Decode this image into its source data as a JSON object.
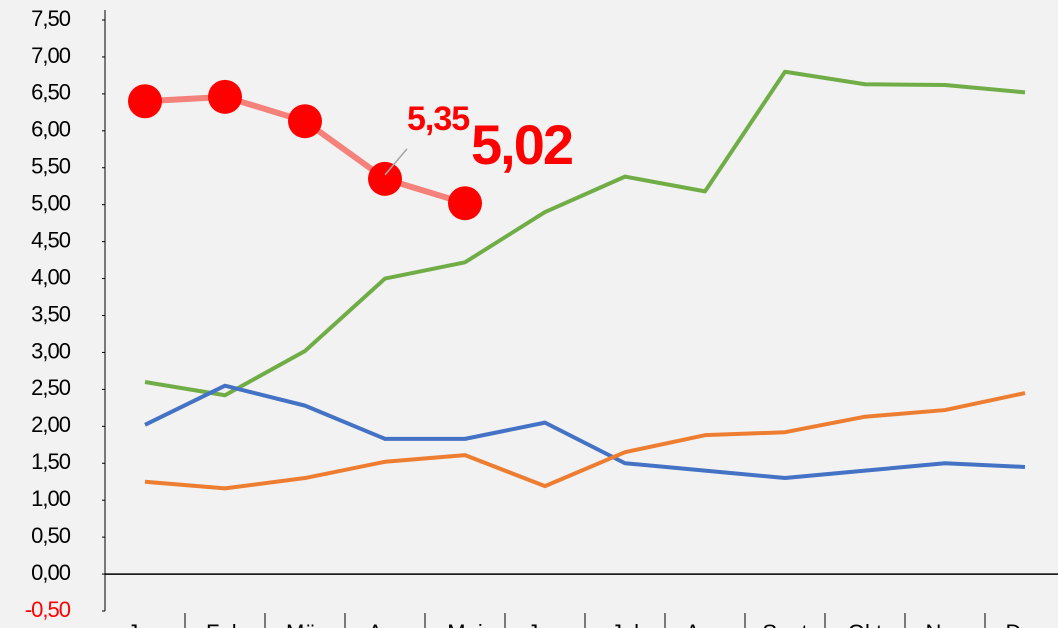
{
  "chart_data": {
    "type": "line",
    "categories": [
      "Jan",
      "Feb",
      "Mär",
      "Apr",
      "Mai",
      "Jun",
      "Jul",
      "Aug",
      "Sept",
      "Okt",
      "Nov",
      "Dez"
    ],
    "series": [
      {
        "color": "#70ad47",
        "values": [
          2.6,
          2.42,
          3.02,
          4.0,
          4.22,
          4.9,
          5.38,
          5.18,
          6.8,
          6.63,
          6.62,
          6.52
        ]
      },
      {
        "color": "#4472c4",
        "values": [
          2.02,
          2.55,
          2.28,
          1.83,
          1.83,
          2.05,
          1.5,
          1.4,
          1.3,
          1.4,
          1.5,
          1.45
        ]
      },
      {
        "color": "#ed7d31",
        "values": [
          1.25,
          1.16,
          1.3,
          1.52,
          1.61,
          1.19,
          1.65,
          1.88,
          1.92,
          2.13,
          2.22,
          2.45
        ]
      },
      {
        "color": "#f4817a",
        "marker_color": "#ff0000",
        "values": [
          6.4,
          6.46,
          6.13,
          5.35,
          5.02,
          null,
          null,
          null,
          null,
          null,
          null,
          null
        ],
        "value_labels": [
          null,
          null,
          null,
          "5,35",
          "5,02",
          null,
          null,
          null,
          null,
          null,
          null,
          null
        ]
      }
    ],
    "ylim": [
      -0.5,
      7.5
    ],
    "yticks": [
      {
        "value": -0.5,
        "label": "-0,50"
      },
      {
        "value": 0,
        "label": "0,00"
      },
      {
        "value": 0.5,
        "label": "0,50"
      },
      {
        "value": 1,
        "label": "1,00"
      },
      {
        "value": 1.5,
        "label": "1,50"
      },
      {
        "value": 2,
        "label": "2,00"
      },
      {
        "value": 2.5,
        "label": "2,50"
      },
      {
        "value": 3,
        "label": "3,00"
      },
      {
        "value": 3.5,
        "label": "3,50"
      },
      {
        "value": 4,
        "label": "4,00"
      },
      {
        "value": 4.5,
        "label": "4,50"
      },
      {
        "value": 5,
        "label": "5,00"
      },
      {
        "value": 5.5,
        "label": "5,50"
      },
      {
        "value": 6,
        "label": "6,00"
      },
      {
        "value": 6.5,
        "label": "6,50"
      },
      {
        "value": 7,
        "label": "7,00"
      },
      {
        "value": 7.5,
        "label": "7,50"
      }
    ],
    "negative_tick_color": "#ff0000",
    "grid": false
  }
}
